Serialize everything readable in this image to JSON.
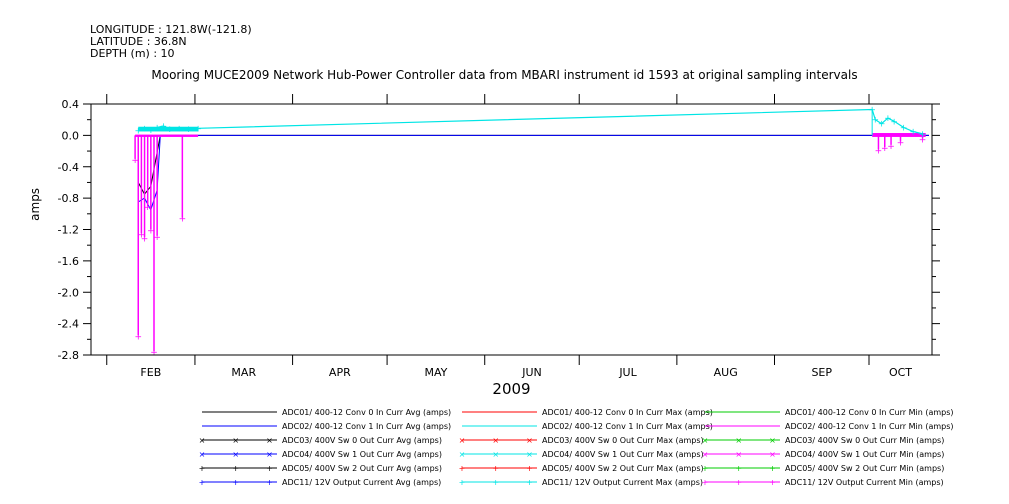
{
  "header": {
    "longitude": "LONGITUDE : 121.8W(-121.8)",
    "latitude": "LATITUDE : 36.8N",
    "depth": "DEPTH (m) : 10"
  },
  "chart_data": {
    "type": "line",
    "title": "Mooring MUCE2009 Network Hub-Power Controller data from MBARI instrument id 1593 at original sampling intervals",
    "xlabel": "2009",
    "ylabel": "amps",
    "x_months": [
      "FEB",
      "MAR",
      "APR",
      "MAY",
      "JUN",
      "JUL",
      "AUG",
      "SEP",
      "OCT"
    ],
    "ylim": [
      -2.8,
      0.4
    ],
    "yticks": [
      0.4,
      0.0,
      -0.4,
      -0.8,
      -1.2,
      -1.6,
      -2.0,
      -2.4,
      -2.8
    ],
    "ytick_labels": [
      "0.4",
      "0.0",
      "-0.4",
      "-0.8",
      "-1.2",
      "-1.6",
      "-2.0",
      "-2.4",
      "-2.8"
    ],
    "xlim": [
      "2009-01-27",
      "2009-10-21"
    ],
    "series_names": [
      "ADC01/ 400-12 Conv 0 In Curr Avg (amps)",
      "ADC01/ 400-12 Conv 0 In Curr Max (amps)",
      "ADC01/ 400-12 Conv 0 In Curr Min (amps)",
      "ADC02/ 400-12 Conv 1 In Curr Avg (amps)",
      "ADC02/ 400-12 Conv 1 In Curr Max (amps)",
      "ADC02/ 400-12 Conv 1 In Curr Min (amps)",
      "ADC03/ 400V Sw 0 Out Curr Avg (amps)",
      "ADC03/ 400V Sw 0 Out Curr Max (amps)",
      "ADC03/ 400V Sw 0 Out Curr Min (amps)",
      "ADC04/ 400V Sw 1 Out Curr Avg (amps)",
      "ADC04/ 400V Sw 1 Out Curr Max (amps)",
      "ADC04/ 400V Sw 1 Out Curr Min (amps)",
      "ADC05/ 400V Sw 2 Out Curr Avg (amps)",
      "ADC05/ 400V Sw 2 Out Curr Max (amps)",
      "ADC05/ 400V Sw 2 Out Curr Min (amps)",
      "ADC11/ 12V Output Current Avg (amps)",
      "ADC11/ 12V Output Current Max (amps)",
      "ADC11/ 12V Output Current Min (amps)"
    ],
    "legend": [
      {
        "label": "ADC01/ 400-12 Conv 0 In Curr Avg (amps)",
        "color": "#000000",
        "marker": "none"
      },
      {
        "label": "ADC01/ 400-12 Conv 0 In Curr Max (amps)",
        "color": "#ff0000",
        "marker": "none"
      },
      {
        "label": "ADC01/ 400-12 Conv 0 In Curr Min (amps)",
        "color": "#00cc00",
        "marker": "none"
      },
      {
        "label": "ADC02/ 400-12 Conv 1 In Curr Avg (amps)",
        "color": "#0000ff",
        "marker": "none"
      },
      {
        "label": "ADC02/ 400-12 Conv 1 In Curr Max (amps)",
        "color": "#00e5e5",
        "marker": "none"
      },
      {
        "label": "ADC02/ 400-12 Conv 1 In Curr Min (amps)",
        "color": "#ff00ff",
        "marker": "none"
      },
      {
        "label": "ADC03/ 400V Sw 0 Out Curr Avg (amps)",
        "color": "#000000",
        "marker": "x"
      },
      {
        "label": "ADC03/ 400V Sw 0 Out Curr Max (amps)",
        "color": "#ff0000",
        "marker": "x"
      },
      {
        "label": "ADC03/ 400V Sw 0 Out Curr Min (amps)",
        "color": "#00cc00",
        "marker": "x"
      },
      {
        "label": "ADC04/ 400V Sw 1 Out Curr Avg (amps)",
        "color": "#0000ff",
        "marker": "x"
      },
      {
        "label": "ADC04/ 400V Sw 1 Out Curr Max (amps)",
        "color": "#00e5e5",
        "marker": "x"
      },
      {
        "label": "ADC04/ 400V Sw 1 Out Curr Min (amps)",
        "color": "#ff00ff",
        "marker": "x"
      },
      {
        "label": "ADC05/ 400V Sw 2 Out Curr Avg (amps)",
        "color": "#000000",
        "marker": "+"
      },
      {
        "label": "ADC05/ 400V Sw 2 Out Curr Max (amps)",
        "color": "#ff0000",
        "marker": "+"
      },
      {
        "label": "ADC05/ 400V Sw 2 Out Curr Min (amps)",
        "color": "#00cc00",
        "marker": "+"
      },
      {
        "label": "ADC11/ 12V Output Current Avg (amps)",
        "color": "#0000ff",
        "marker": "+"
      },
      {
        "label": "ADC11/ 12V Output Current Max (amps)",
        "color": "#00e5e5",
        "marker": "+"
      },
      {
        "label": "ADC11/ 12V Output Current Min (amps)",
        "color": "#ff00ff",
        "marker": "+"
      }
    ],
    "traces": {
      "cyan_max": [
        [
          "2009-02-11",
          0.06
        ],
        [
          "2009-02-13",
          0.09
        ],
        [
          "2009-02-15",
          0.07
        ],
        [
          "2009-02-17",
          0.1
        ],
        [
          "2009-02-19",
          0.12
        ],
        [
          "2009-02-21",
          0.08
        ],
        [
          "2009-02-24",
          0.09
        ],
        [
          "2009-02-27",
          0.08
        ],
        [
          "2009-03-02",
          0.09
        ],
        [
          "2009-10-02",
          0.33
        ],
        [
          "2009-10-03",
          0.2
        ],
        [
          "2009-10-05",
          0.15
        ],
        [
          "2009-10-07",
          0.22
        ],
        [
          "2009-10-09",
          0.18
        ],
        [
          "2009-10-12",
          0.1
        ],
        [
          "2009-10-15",
          0.05
        ],
        [
          "2009-10-18",
          0.02
        ]
      ],
      "magenta_min": [
        [
          "2009-02-10",
          -0.3
        ],
        [
          "2009-02-11",
          -2.55
        ],
        [
          "2009-02-12",
          -1.25
        ],
        [
          "2009-02-13",
          -1.3
        ],
        [
          "2009-02-14",
          -0.9
        ],
        [
          "2009-02-15",
          -1.2
        ],
        [
          "2009-02-16",
          -2.75
        ],
        [
          "2009-02-17",
          -1.28
        ],
        [
          "2009-02-25",
          -1.05
        ],
        [
          "2009-10-04",
          -0.18
        ],
        [
          "2009-10-06",
          -0.15
        ],
        [
          "2009-10-08",
          -0.12
        ],
        [
          "2009-10-11",
          -0.08
        ],
        [
          "2009-10-18",
          -0.04
        ]
      ],
      "blue_avg": [
        [
          "2009-02-11",
          -0.85
        ],
        [
          "2009-02-13",
          -0.8
        ],
        [
          "2009-02-15",
          -0.95
        ],
        [
          "2009-02-17",
          -0.7
        ],
        [
          "2009-02-18",
          0.0
        ],
        [
          "2009-10-20",
          0.0
        ]
      ],
      "black_avg": [
        [
          "2009-02-11",
          -0.6
        ],
        [
          "2009-02-13",
          -0.75
        ],
        [
          "2009-02-15",
          -0.65
        ],
        [
          "2009-02-18",
          0.0
        ],
        [
          "2009-10-20",
          0.0
        ]
      ]
    }
  }
}
